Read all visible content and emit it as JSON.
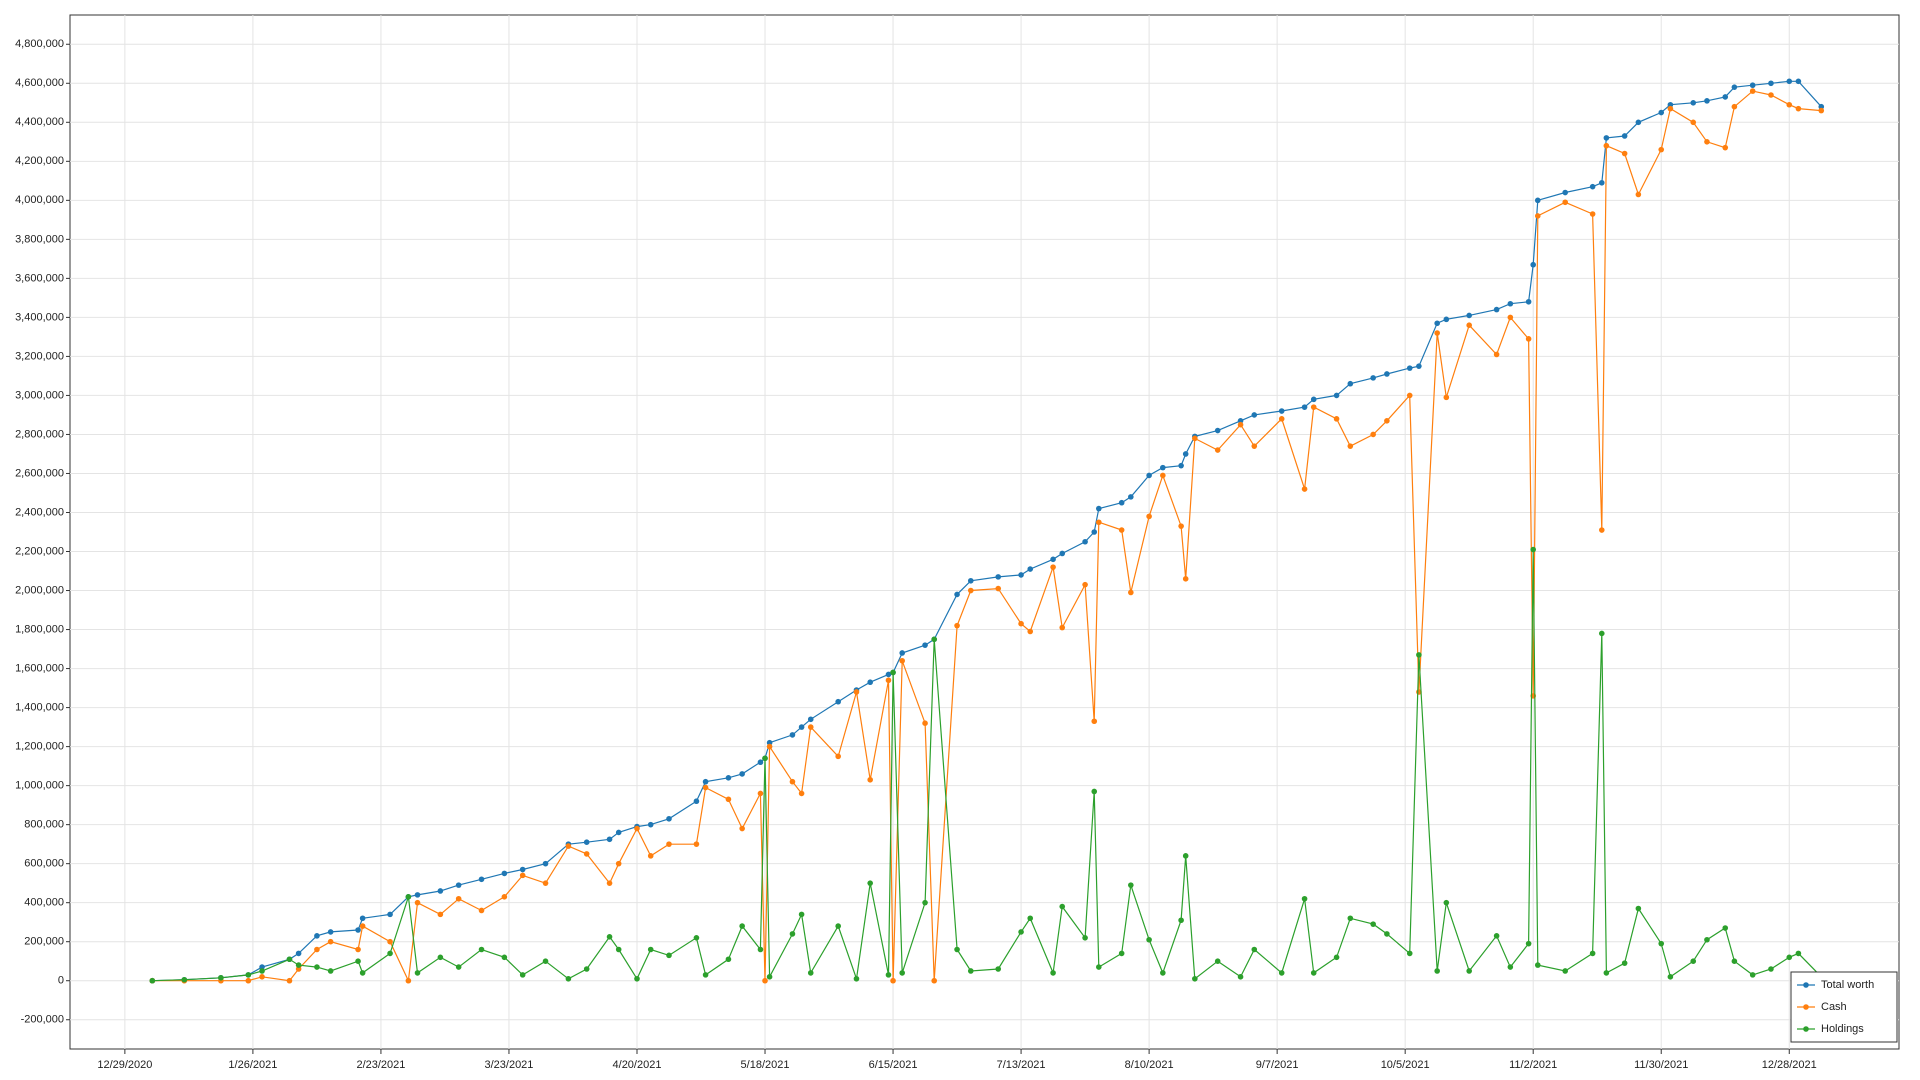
{
  "chart_data": {
    "type": "line",
    "x": [
      "1/4/2021",
      "1/11/2021",
      "1/19/2021",
      "1/25/2021",
      "1/28/2021",
      "2/3/2021",
      "2/5/2021",
      "2/9/2021",
      "2/12/2021",
      "2/18/2021",
      "2/19/2021",
      "2/25/2021",
      "3/1/2021",
      "3/3/2021",
      "3/8/2021",
      "3/12/2021",
      "3/17/2021",
      "3/22/2021",
      "3/26/2021",
      "3/31/2021",
      "4/5/2021",
      "4/9/2021",
      "4/14/2021",
      "4/16/2021",
      "4/20/2021",
      "4/23/2021",
      "4/27/2021",
      "5/3/2021",
      "5/5/2021",
      "5/10/2021",
      "5/13/2021",
      "5/17/2021",
      "5/18/2021",
      "5/19/2021",
      "5/24/2021",
      "5/26/2021",
      "5/28/2021",
      "6/3/2021",
      "6/7/2021",
      "6/10/2021",
      "6/14/2021",
      "6/15/2021",
      "6/17/2021",
      "6/22/2021",
      "6/24/2021",
      "6/29/2021",
      "7/2/2021",
      "7/8/2021",
      "7/13/2021",
      "7/15/2021",
      "7/20/2021",
      "7/22/2021",
      "7/27/2021",
      "7/29/2021",
      "7/30/2021",
      "8/4/2021",
      "8/6/2021",
      "8/10/2021",
      "8/13/2021",
      "8/17/2021",
      "8/18/2021",
      "8/20/2021",
      "8/25/2021",
      "8/30/2021",
      "9/2/2021",
      "9/8/2021",
      "9/13/2021",
      "9/15/2021",
      "9/20/2021",
      "9/23/2021",
      "9/28/2021",
      "10/1/2021",
      "10/6/2021",
      "10/8/2021",
      "10/12/2021",
      "10/14/2021",
      "10/19/2021",
      "10/25/2021",
      "10/28/2021",
      "11/1/2021",
      "11/2/2021",
      "11/3/2021",
      "11/9/2021",
      "11/15/2021",
      "11/17/2021",
      "11/18/2021",
      "11/22/2021",
      "11/25/2021",
      "11/30/2021",
      "12/2/2021",
      "12/7/2021",
      "12/10/2021",
      "12/14/2021",
      "12/16/2021",
      "12/20/2021",
      "12/24/2021",
      "12/28/2021",
      "12/30/2021",
      "1/4/2022"
    ],
    "series": [
      {
        "name": "Total worth",
        "color": "#1f77b4",
        "values": [
          0,
          5000,
          15000,
          30000,
          70000,
          110000,
          140000,
          230000,
          250000,
          260000,
          320000,
          340000,
          430000,
          440000,
          460000,
          490000,
          520000,
          550000,
          570000,
          600000,
          700000,
          710000,
          725000,
          760000,
          790000,
          800000,
          830000,
          920000,
          1020000,
          1040000,
          1060000,
          1120000,
          1140000,
          1220000,
          1260000,
          1300000,
          1340000,
          1430000,
          1490000,
          1530000,
          1570000,
          1580000,
          1680000,
          1720000,
          1750000,
          1980000,
          2050000,
          2070000,
          2080000,
          2110000,
          2160000,
          2190000,
          2250000,
          2300000,
          2420000,
          2450000,
          2480000,
          2590000,
          2630000,
          2640000,
          2700000,
          2790000,
          2820000,
          2870000,
          2900000,
          2920000,
          2940000,
          2980000,
          3000000,
          3060000,
          3090000,
          3110000,
          3140000,
          3150000,
          3370000,
          3390000,
          3410000,
          3440000,
          3470000,
          3480000,
          3670000,
          4000000,
          4040000,
          4070000,
          4090000,
          4320000,
          4330000,
          4400000,
          4450000,
          4490000,
          4500000,
          4510000,
          4530000,
          4580000,
          4590000,
          4600000,
          4610000,
          4610000,
          4480000
        ]
      },
      {
        "name": "Cash",
        "color": "#ff7f0e",
        "values": [
          0,
          0,
          0,
          0,
          20000,
          0,
          60000,
          160000,
          200000,
          160000,
          280000,
          200000,
          0,
          400000,
          340000,
          420000,
          360000,
          430000,
          540000,
          500000,
          690000,
          650000,
          500000,
          600000,
          780000,
          640000,
          700000,
          700000,
          990000,
          930000,
          780000,
          960000,
          0,
          1200000,
          1020000,
          960000,
          1300000,
          1150000,
          1480000,
          1030000,
          1540000,
          0,
          1640000,
          1320000,
          0,
          1820000,
          2000000,
          2010000,
          1830000,
          1790000,
          2120000,
          1810000,
          2030000,
          1330000,
          2350000,
          2310000,
          1990000,
          2380000,
          2590000,
          2330000,
          2060000,
          2780000,
          2720000,
          2850000,
          2740000,
          2880000,
          2520000,
          2940000,
          2880000,
          2740000,
          2800000,
          2870000,
          3000000,
          1480000,
          3320000,
          2990000,
          3360000,
          3210000,
          3400000,
          3290000,
          1460000,
          3920000,
          3990000,
          3930000,
          2310000,
          4280000,
          4240000,
          4030000,
          4260000,
          4470000,
          4400000,
          4300000,
          4270000,
          4480000,
          4560000,
          4540000,
          4490000,
          4470000,
          4460000
        ]
      },
      {
        "name": "Holdings",
        "color": "#2ca02c",
        "values": [
          0,
          5000,
          15000,
          30000,
          50000,
          110000,
          80000,
          70000,
          50000,
          100000,
          40000,
          140000,
          430000,
          40000,
          120000,
          70000,
          160000,
          120000,
          30000,
          100000,
          10000,
          60000,
          225000,
          160000,
          10000,
          160000,
          130000,
          220000,
          30000,
          110000,
          280000,
          160000,
          1140000,
          20000,
          240000,
          340000,
          40000,
          280000,
          10000,
          500000,
          30000,
          1580000,
          40000,
          400000,
          1750000,
          160000,
          50000,
          60000,
          250000,
          320000,
          40000,
          380000,
          220000,
          970000,
          70000,
          140000,
          490000,
          210000,
          40000,
          310000,
          640000,
          10000,
          100000,
          20000,
          160000,
          40000,
          420000,
          40000,
          120000,
          320000,
          290000,
          240000,
          140000,
          1670000,
          50000,
          400000,
          50000,
          230000,
          70000,
          190000,
          2210000,
          80000,
          50000,
          140000,
          1780000,
          40000,
          90000,
          370000,
          190000,
          20000,
          100000,
          210000,
          270000,
          100000,
          30000,
          60000,
          120000,
          140000,
          20000
        ]
      }
    ],
    "xlim": [
      "12/17/2020",
      "1/21/2022"
    ],
    "xticks": [
      "12/29/2020",
      "1/26/2021",
      "2/23/2021",
      "3/23/2021",
      "4/20/2021",
      "5/18/2021",
      "6/15/2021",
      "7/13/2021",
      "8/10/2021",
      "9/7/2021",
      "10/5/2021",
      "11/2/2021",
      "11/30/2021",
      "12/28/2021"
    ],
    "ylim": [
      -350000,
      4950000
    ],
    "yticks": [
      {
        "value": -200000,
        "label": "-200,000"
      },
      0,
      {
        "value": 200000,
        "label": "200,000"
      },
      {
        "value": 400000,
        "label": "400,000"
      },
      {
        "value": 600000,
        "label": "600,000"
      },
      {
        "value": 800000,
        "label": "800,000"
      },
      {
        "value": 1000000,
        "label": "1,000,000"
      },
      {
        "value": 1200000,
        "label": "1,200,000"
      },
      {
        "value": 1400000,
        "label": "1,400,000"
      },
      {
        "value": 1600000,
        "label": "1,600,000"
      },
      {
        "value": 1800000,
        "label": "1,800,000"
      },
      {
        "value": 2000000,
        "label": "2,000,000"
      },
      {
        "value": 2200000,
        "label": "2,200,000"
      },
      {
        "value": 2400000,
        "label": "2,400,000"
      },
      {
        "value": 2600000,
        "label": "2,600,000"
      },
      {
        "value": 2800000,
        "label": "2,800,000"
      },
      {
        "value": 3000000,
        "label": "3,000,000"
      },
      {
        "value": 3200000,
        "label": "3,200,000"
      },
      {
        "value": 3400000,
        "label": "3,400,000"
      },
      {
        "value": 3600000,
        "label": "3,600,000"
      },
      {
        "value": 3800000,
        "label": "3,800,000"
      },
      {
        "value": 4000000,
        "label": "4,000,000"
      },
      {
        "value": 4200000,
        "label": "4,200,000"
      },
      {
        "value": 4400000,
        "label": "4,400,000"
      },
      {
        "value": 4600000,
        "label": "4,600,000"
      },
      {
        "value": 4800000,
        "label": "4,800,000"
      }
    ],
    "grid": true,
    "legend": "lower right"
  }
}
